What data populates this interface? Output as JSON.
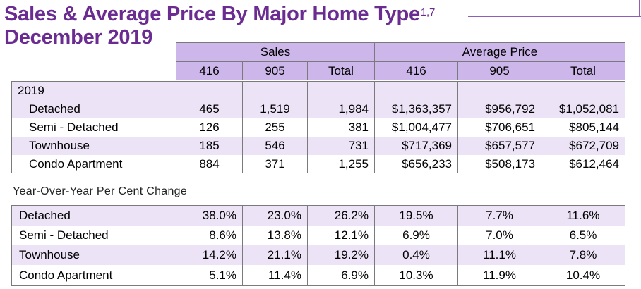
{
  "title": {
    "line1": "Sales & Average Price By Major Home Type",
    "superscript": "1,7",
    "line2": "December 2019"
  },
  "header": {
    "group_sales": "Sales",
    "group_price": "Average Price",
    "cols": [
      "416",
      "905",
      "Total",
      "416",
      "905",
      "Total"
    ]
  },
  "table": {
    "year_label": "2019",
    "rows": [
      {
        "type": "Detached",
        "values": [
          "465",
          "1,519",
          "1,984",
          "$1,363,357",
          "$956,792",
          "$1,052,081"
        ]
      },
      {
        "type": "Semi - Detached",
        "values": [
          "126",
          "255",
          "381",
          "$1,004,477",
          "$706,651",
          "$805,144"
        ]
      },
      {
        "type": "Townhouse",
        "values": [
          "185",
          "546",
          "731",
          "$717,369",
          "$657,577",
          "$672,709"
        ]
      },
      {
        "type": "Condo Apartment",
        "values": [
          "884",
          "371",
          "1,255",
          "$656,233",
          "$508,173",
          "$612,464"
        ]
      }
    ]
  },
  "yoy": {
    "label": "Year-Over-Year Per Cent Change",
    "rows": [
      {
        "type": "Detached",
        "values": [
          "38.0%",
          "23.0%",
          "26.2%",
          "19.5%",
          "7.7%",
          "11.6%"
        ]
      },
      {
        "type": "Semi - Detached",
        "values": [
          "8.6%",
          "13.8%",
          "12.1%",
          "6.9%",
          "7.0%",
          "6.5%"
        ]
      },
      {
        "type": "Townhouse",
        "values": [
          "14.2%",
          "21.1%",
          "19.2%",
          "0.4%",
          "11.1%",
          "7.8%"
        ]
      },
      {
        "type": "Condo Apartment",
        "values": [
          "5.1%",
          "11.4%",
          "6.9%",
          "10.3%",
          "11.9%",
          "10.4%"
        ]
      }
    ]
  },
  "colors": {
    "title": "#6a2c91",
    "header_bg": "#cdb6ea",
    "row_shade": "#ece3f6",
    "border": "#7a7a7a"
  }
}
